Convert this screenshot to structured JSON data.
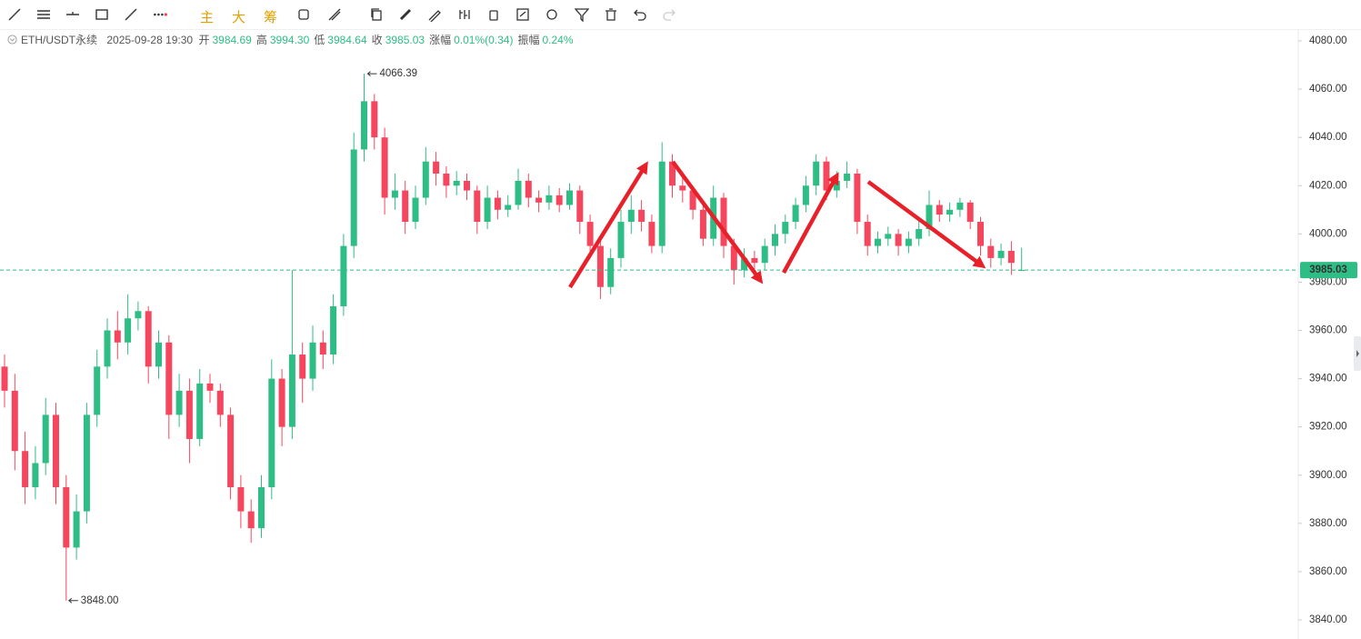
{
  "toolbar": [
    "主",
    "大",
    "筹"
  ],
  "info": {
    "symbol": "ETH/USDT永续",
    "time": "2025-09-28 19:30",
    "fields": [
      {
        "name": "开",
        "value": "3984.69"
      },
      {
        "name": "高",
        "value": "3994.30"
      },
      {
        "name": "低",
        "value": "3984.64"
      },
      {
        "name": "收",
        "value": "3985.03"
      },
      {
        "name": "涨幅",
        "value": "0.01%(0.34)"
      },
      {
        "name": "振幅",
        "value": "0.24%"
      }
    ]
  },
  "chart_data": {
    "type": "candlestick",
    "up_color": "#2ebd85",
    "down_color": "#f6465d",
    "open": [
      3945,
      3935,
      3910,
      3895,
      3905,
      3925,
      3895,
      3870,
      3885,
      3925,
      3945,
      3960,
      3955,
      3965,
      3968,
      3945,
      3955,
      3925,
      3935,
      3915,
      3938,
      3935,
      3925,
      3895,
      3885,
      3878,
      3895,
      3940,
      3920,
      3950,
      3940,
      3955,
      3950,
      3970,
      3995,
      4035,
      4055,
      4040,
      4015,
      4018,
      4005,
      4015,
      4030,
      4025,
      4020,
      4022,
      4018,
      4005,
      4015,
      4010,
      4012,
      4022,
      4015,
      4013,
      4016,
      4012,
      4018,
      4005,
      3995,
      3978,
      3990,
      4005,
      4010,
      4005,
      3995,
      4030,
      4020,
      4018,
      4010,
      3998,
      4015,
      3995,
      3985,
      3990,
      3988,
      3995,
      4000,
      4005,
      4012,
      4020,
      4030,
      4018,
      4022,
      4025,
      4005,
      3995,
      3998,
      4000,
      3995,
      3998,
      4002,
      4012,
      4008,
      4010,
      4013,
      4005,
      3995,
      3990,
      3993,
      3984.69
    ],
    "high": [
      3950,
      3942,
      3918,
      3912,
      3932,
      3930,
      3900,
      3892,
      3930,
      3952,
      3965,
      3968,
      3975,
      3972,
      3970,
      3960,
      3958,
      3942,
      3940,
      3944,
      3942,
      3938,
      3928,
      3900,
      3890,
      3900,
      3948,
      3944,
      3985,
      3955,
      3962,
      3960,
      3975,
      4000,
      4042,
      4066.39,
      4058,
      4044,
      4025,
      4022,
      4020,
      4036,
      4034,
      4028,
      4026,
      4025,
      4020,
      4020,
      4018,
      4016,
      4027,
      4025,
      4018,
      4020,
      4019,
      4021,
      4020,
      4008,
      3998,
      3994,
      4010,
      4016,
      4014,
      4008,
      4038,
      4033,
      4024,
      4020,
      4012,
      4020,
      4017,
      3998,
      3994,
      3993,
      3998,
      4004,
      4008,
      4015,
      4024,
      4033,
      4032,
      4026,
      4030,
      4027,
      4008,
      4001,
      4003,
      4002,
      4001,
      4006,
      4018,
      4014,
      4013,
      4015,
      4014,
      4007,
      3998,
      3996,
      3997,
      3994.3
    ],
    "low": [
      3928,
      3902,
      3888,
      3890,
      3900,
      3888,
      3848,
      3865,
      3880,
      3920,
      3940,
      3948,
      3950,
      3960,
      3938,
      3940,
      3915,
      3920,
      3905,
      3912,
      3930,
      3920,
      3890,
      3878,
      3872,
      3874,
      3890,
      3912,
      3915,
      3930,
      3935,
      3944,
      3946,
      3966,
      3990,
      4030,
      4035,
      4008,
      4010,
      4000,
      4002,
      4012,
      4020,
      4015,
      4016,
      4014,
      4000,
      4002,
      4006,
      4007,
      4010,
      4011,
      4009,
      4010,
      4009,
      4010,
      4000,
      3990,
      3973,
      3975,
      3986,
      4000,
      4001,
      3992,
      3992,
      4015,
      4013,
      4006,
      3995,
      3995,
      3990,
      3979,
      3982,
      3984,
      3985,
      3991,
      3996,
      4002,
      4009,
      4016,
      4014,
      4015,
      4019,
      4000,
      3991,
      3992,
      3995,
      3991,
      3992,
      3995,
      3999,
      4005,
      4005,
      4007,
      4002,
      3991,
      3986,
      3987,
      3983,
      3984.64
    ],
    "close": [
      3935,
      3910,
      3895,
      3905,
      3925,
      3895,
      3870,
      3885,
      3925,
      3945,
      3960,
      3955,
      3965,
      3968,
      3945,
      3955,
      3925,
      3935,
      3915,
      3938,
      3935,
      3925,
      3895,
      3885,
      3878,
      3895,
      3940,
      3920,
      3950,
      3940,
      3955,
      3950,
      3970,
      3995,
      4035,
      4055,
      4040,
      4015,
      4018,
      4005,
      4015,
      4030,
      4025,
      4020,
      4022,
      4018,
      4005,
      4015,
      4010,
      4012,
      4022,
      4015,
      4013,
      4016,
      4012,
      4018,
      4005,
      3995,
      3978,
      3990,
      4005,
      4010,
      4005,
      3995,
      4030,
      4020,
      4018,
      4010,
      3998,
      4015,
      3995,
      3985,
      3990,
      3988,
      3995,
      4000,
      4005,
      4012,
      4020,
      4030,
      4018,
      4022,
      4025,
      4005,
      3995,
      3998,
      4000,
      3995,
      3998,
      4002,
      4012,
      4008,
      4010,
      4013,
      4005,
      3995,
      3990,
      3993,
      3988,
      3985.03
    ],
    "ylim": [
      3840,
      4080
    ],
    "yticks": [
      {
        "value": 3840,
        "label": "3840.00"
      },
      {
        "value": 3860,
        "label": "3860.00"
      },
      {
        "value": 3880,
        "label": "3880.00"
      },
      {
        "value": 3900,
        "label": "3900.00"
      },
      {
        "value": 3920,
        "label": "3920.00"
      },
      {
        "value": 3940,
        "label": "3940.00"
      },
      {
        "value": 3960,
        "label": "3960.00"
      },
      {
        "value": 3980,
        "label": "3980.00"
      },
      {
        "value": 4000,
        "label": "4000.00"
      },
      {
        "value": 4020,
        "label": "4020.00"
      },
      {
        "value": 4040,
        "label": "4040.00"
      },
      {
        "value": 4060,
        "label": "4060.00"
      },
      {
        "value": 4080,
        "label": "4080.00"
      }
    ],
    "max_label": 4066.39,
    "min_label": {
      "value": 3848,
      "label": "3848.00"
    },
    "price_line": 3985.03,
    "price_line_color": "#2ebd85"
  }
}
